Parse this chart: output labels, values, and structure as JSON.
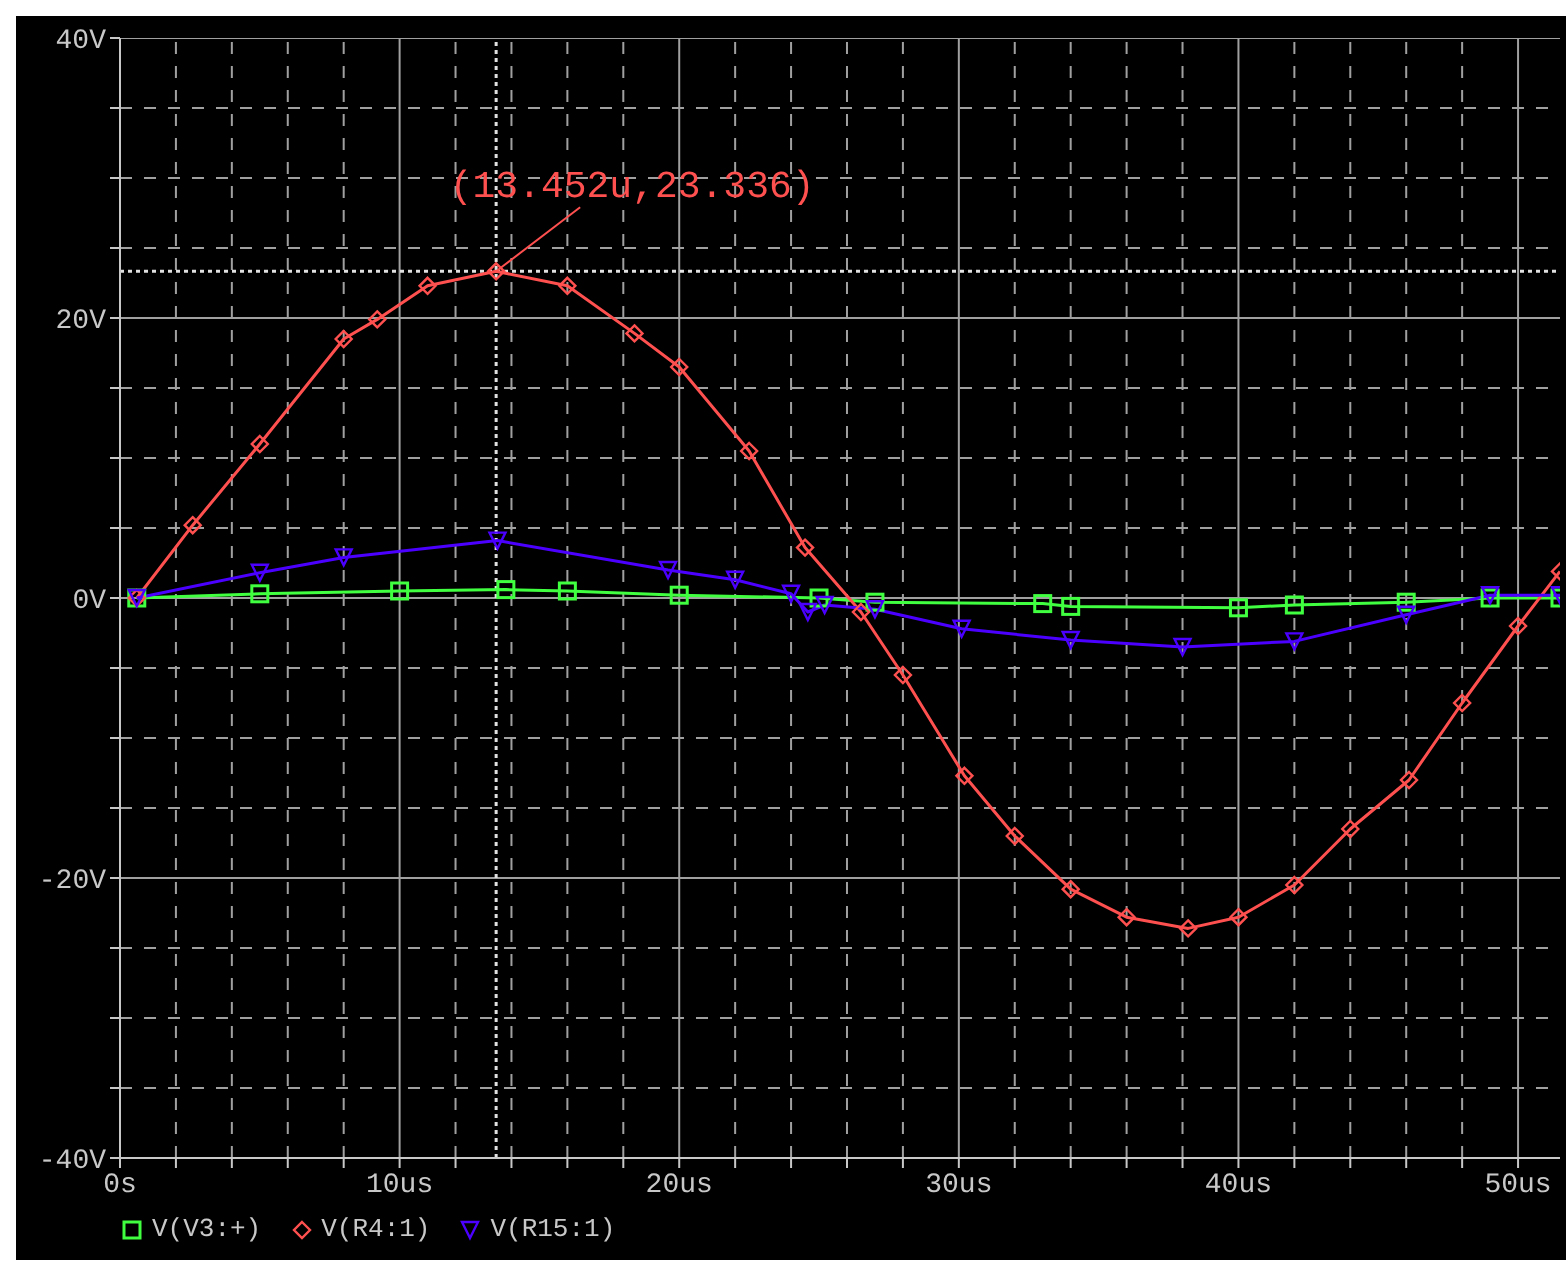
{
  "chart_data": {
    "type": "line",
    "xlim": [
      0,
      51.5
    ],
    "ylim": [
      -40,
      40
    ],
    "xticks": [
      {
        "value": 0,
        "label": "0s"
      },
      {
        "value": 2,
        "label": null
      },
      {
        "value": 4,
        "label": null
      },
      {
        "value": 6,
        "label": null
      },
      {
        "value": 8,
        "label": null
      },
      {
        "value": 10,
        "label": "10us"
      },
      {
        "value": 12,
        "label": null
      },
      {
        "value": 14,
        "label": null
      },
      {
        "value": 16,
        "label": null
      },
      {
        "value": 18,
        "label": null
      },
      {
        "value": 20,
        "label": "20us"
      },
      {
        "value": 22,
        "label": null
      },
      {
        "value": 24,
        "label": null
      },
      {
        "value": 26,
        "label": null
      },
      {
        "value": 28,
        "label": null
      },
      {
        "value": 30,
        "label": "30us"
      },
      {
        "value": 32,
        "label": null
      },
      {
        "value": 34,
        "label": null
      },
      {
        "value": 36,
        "label": null
      },
      {
        "value": 38,
        "label": null
      },
      {
        "value": 40,
        "label": "40us"
      },
      {
        "value": 42,
        "label": null
      },
      {
        "value": 44,
        "label": null
      },
      {
        "value": 46,
        "label": null
      },
      {
        "value": 48,
        "label": null
      },
      {
        "value": 50,
        "label": "50us"
      }
    ],
    "yticks": [
      {
        "value": -40,
        "label": "-40V"
      },
      {
        "value": -35,
        "label": null
      },
      {
        "value": -30,
        "label": null
      },
      {
        "value": -25,
        "label": null
      },
      {
        "value": -20,
        "label": "-20V"
      },
      {
        "value": -15,
        "label": null
      },
      {
        "value": -10,
        "label": null
      },
      {
        "value": -5,
        "label": null
      },
      {
        "value": 0,
        "label": "0V"
      },
      {
        "value": 5,
        "label": null
      },
      {
        "value": 10,
        "label": null
      },
      {
        "value": 15,
        "label": null
      },
      {
        "value": 20,
        "label": "20V"
      },
      {
        "value": 25,
        "label": null
      },
      {
        "value": 30,
        "label": null
      },
      {
        "value": 35,
        "label": null
      },
      {
        "value": 40,
        "label": "40V"
      }
    ],
    "grid": true,
    "legend": "bottom left",
    "line_style": "solid",
    "series": [
      {
        "name": "V(V3:+)",
        "color": "#40ff40",
        "marker": "square",
        "x": [
          0.6,
          5,
          10,
          13.8,
          16,
          20,
          25,
          27,
          33,
          34,
          40,
          42,
          46,
          49,
          51.5
        ],
        "values": [
          0,
          0.3,
          0.5,
          0.6,
          0.5,
          0.2,
          0,
          -0.3,
          -0.4,
          -0.6,
          -0.7,
          -0.5,
          -0.3,
          0,
          0
        ]
      },
      {
        "name": "V(R4:1)",
        "color": "#ff5050",
        "marker": "diamond",
        "x": [
          0.6,
          2.6,
          5,
          8,
          9.2,
          11,
          13.452,
          16,
          18.4,
          20,
          22.5,
          24.5,
          26.5,
          28,
          30.2,
          32,
          34,
          36,
          38.2,
          40,
          42,
          44,
          46.1,
          48,
          50,
          51.5
        ],
        "values": [
          0,
          5.2,
          11,
          18.5,
          19.9,
          22.3,
          23.336,
          22.3,
          18.9,
          16.5,
          10.5,
          3.6,
          -1,
          -5.5,
          -12.7,
          -17,
          -20.8,
          -22.8,
          -23.6,
          -22.8,
          -20.5,
          -16.5,
          -13,
          -7.5,
          -2,
          1.9
        ]
      },
      {
        "name": "V(R15:1)",
        "color": "#4b00ff",
        "marker": "triangle",
        "x": [
          0.6,
          5,
          8,
          13.5,
          19.6,
          22,
          24,
          24.6,
          25.2,
          27,
          30.1,
          34,
          38,
          42,
          46,
          49,
          51.5
        ],
        "values": [
          0,
          1.8,
          2.9,
          4.1,
          2,
          1.3,
          0.3,
          -1,
          -0.5,
          -0.8,
          -2.2,
          -3,
          -3.5,
          -3.1,
          -1.2,
          0.2,
          0.2
        ]
      }
    ],
    "ref_lines": [
      {
        "axis": "x",
        "value": 13.452,
        "line_style": "dotted",
        "color": "#e0e0e0"
      },
      {
        "axis": "y",
        "value": 23.336,
        "line_style": "dotted",
        "color": "#e0e0e0"
      }
    ],
    "annotations": [
      {
        "text": "(13.452u,23.336)",
        "x": 13.452,
        "y": 23.336
      }
    ]
  }
}
